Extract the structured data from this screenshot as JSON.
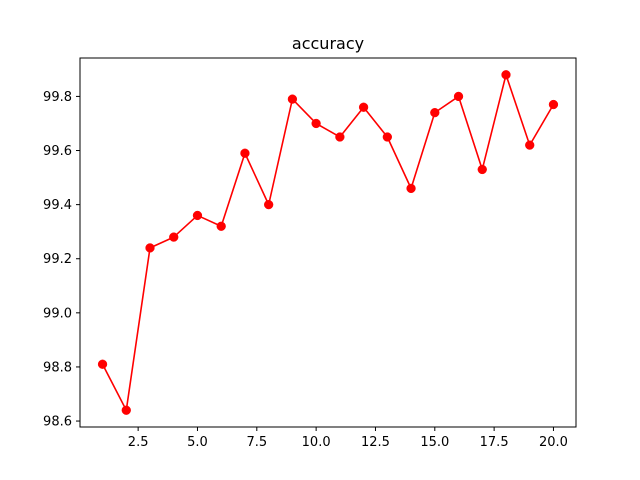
{
  "chart_data": {
    "type": "line",
    "title": "accuracy",
    "xlabel": "",
    "ylabel": "",
    "x": [
      1,
      2,
      3,
      4,
      5,
      6,
      7,
      8,
      9,
      10,
      11,
      12,
      13,
      14,
      15,
      16,
      17,
      18,
      19,
      20
    ],
    "series": [
      {
        "values": [
          98.81,
          98.64,
          99.24,
          99.28,
          99.36,
          99.32,
          99.59,
          99.4,
          99.79,
          99.7,
          99.65,
          99.76,
          99.65,
          99.46,
          99.74,
          99.8,
          99.53,
          99.88,
          99.62,
          99.77
        ],
        "color": "#ff0000",
        "marker": "circle"
      }
    ],
    "xlim": [
      0.05,
      20.95
    ],
    "ylim": [
      98.578,
      99.942
    ],
    "xticks": [
      2.5,
      5.0,
      7.5,
      10.0,
      12.5,
      15.0,
      17.5,
      20.0
    ],
    "xtick_labels": [
      "2.5",
      "5.0",
      "7.5",
      "10.0",
      "12.5",
      "15.0",
      "17.5",
      "20.0"
    ],
    "yticks": [
      98.6,
      98.8,
      99.0,
      99.2,
      99.4,
      99.6,
      99.8
    ],
    "ytick_labels": [
      "98.6",
      "98.8",
      "99.0",
      "99.2",
      "99.4",
      "99.6",
      "99.8"
    ],
    "grid": false,
    "legend": false
  }
}
